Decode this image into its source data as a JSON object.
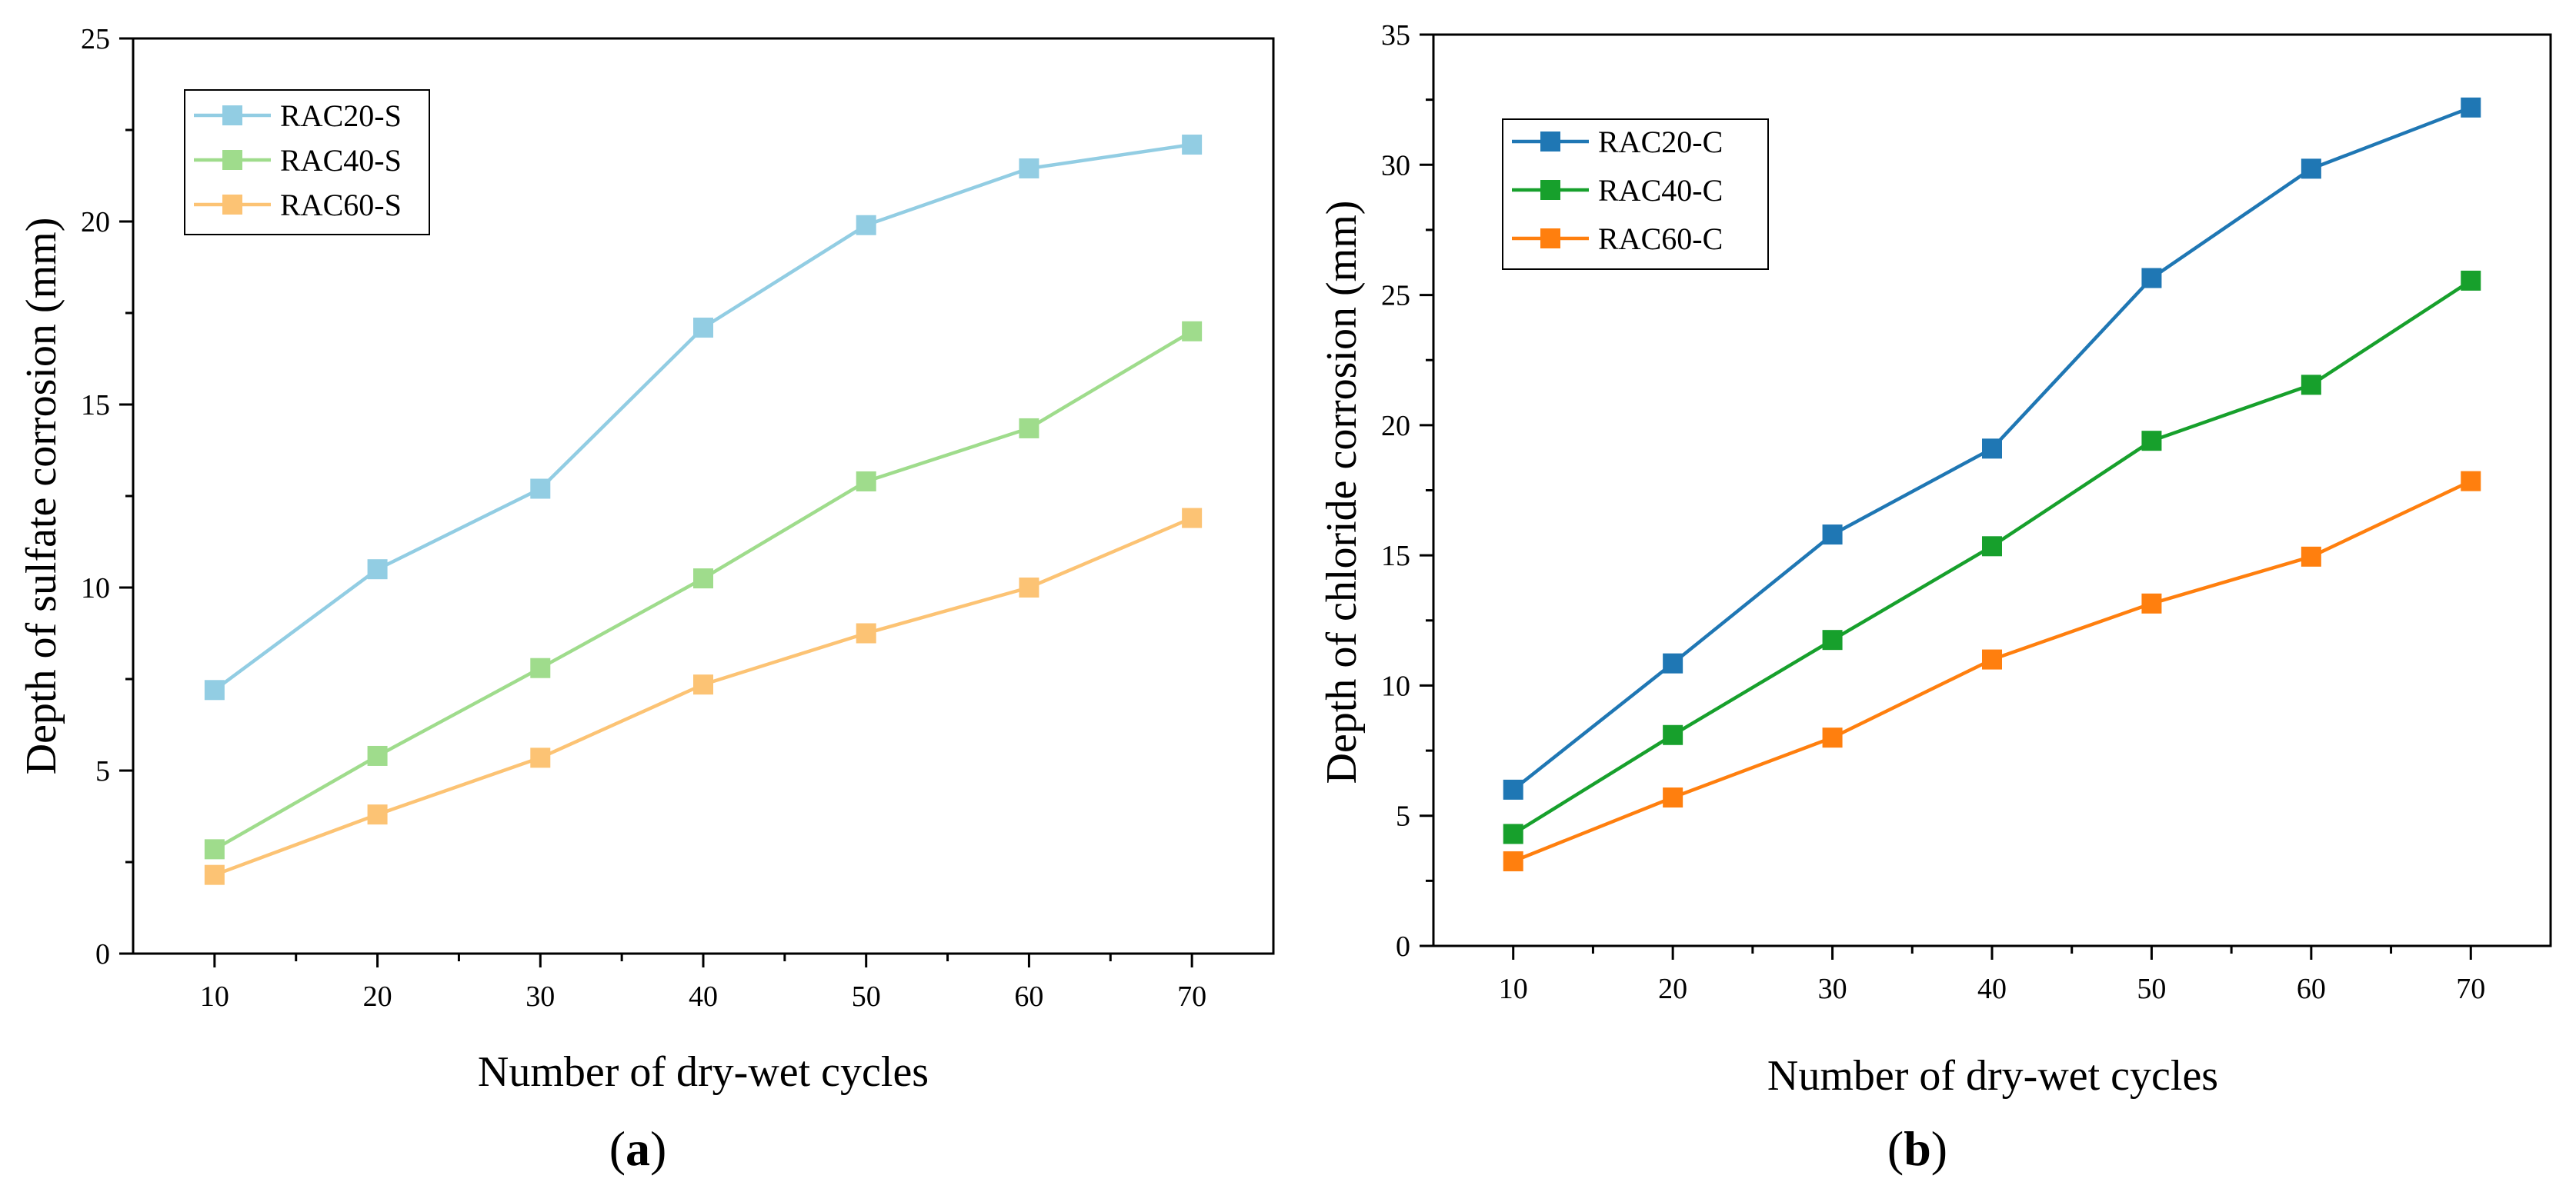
{
  "chart_data": [
    {
      "type": "line",
      "panel": "a",
      "panel_label": {
        "open": "(",
        "letter": "a",
        "close": ")"
      },
      "title": "",
      "xlabel": "Number of dry-wet cycles",
      "ylabel": "Depth of sulfate corrosion (mm)",
      "xlim": [
        5,
        75
      ],
      "ylim": [
        0,
        25
      ],
      "xticks": [
        10,
        20,
        30,
        40,
        50,
        60,
        70
      ],
      "yticks": [
        0,
        5,
        10,
        15,
        20,
        25
      ],
      "x": [
        10,
        20,
        30,
        40,
        50,
        60,
        70
      ],
      "legend_position": "top-left",
      "series": [
        {
          "name": "RAC20-S",
          "color": "#92cde3",
          "values": [
            7.2,
            10.5,
            12.7,
            17.1,
            19.9,
            21.45,
            22.1
          ]
        },
        {
          "name": "RAC40-S",
          "color": "#9fdc8c",
          "values": [
            2.85,
            5.4,
            7.8,
            10.25,
            12.9,
            14.35,
            17.0
          ]
        },
        {
          "name": "RAC60-S",
          "color": "#fcc374",
          "values": [
            2.15,
            3.8,
            5.35,
            7.35,
            8.75,
            10.0,
            11.9
          ]
        }
      ]
    },
    {
      "type": "line",
      "panel": "b",
      "panel_label": {
        "open": "(",
        "letter": "b",
        "close": ")"
      },
      "title": "",
      "xlabel": "Number of dry-wet cycles",
      "ylabel": "Depth of chloride corrosion (mm)",
      "xlim": [
        5,
        75
      ],
      "ylim": [
        0,
        35
      ],
      "xticks": [
        10,
        20,
        30,
        40,
        50,
        60,
        70
      ],
      "yticks": [
        0,
        5,
        10,
        15,
        20,
        25,
        30,
        35
      ],
      "x": [
        10,
        20,
        30,
        40,
        50,
        60,
        70
      ],
      "legend_position": "top-left",
      "series": [
        {
          "name": "RAC20-C",
          "color": "#1f77b4",
          "values": [
            6.0,
            10.85,
            15.8,
            19.1,
            25.65,
            29.85,
            32.2
          ]
        },
        {
          "name": "RAC40-C",
          "color": "#17a02c",
          "values": [
            4.3,
            8.1,
            11.75,
            15.35,
            19.4,
            21.55,
            25.55
          ]
        },
        {
          "name": "RAC60-C",
          "color": "#ff7f0e",
          "values": [
            3.25,
            5.7,
            8.0,
            11.0,
            13.15,
            14.95,
            17.85
          ]
        }
      ]
    }
  ]
}
